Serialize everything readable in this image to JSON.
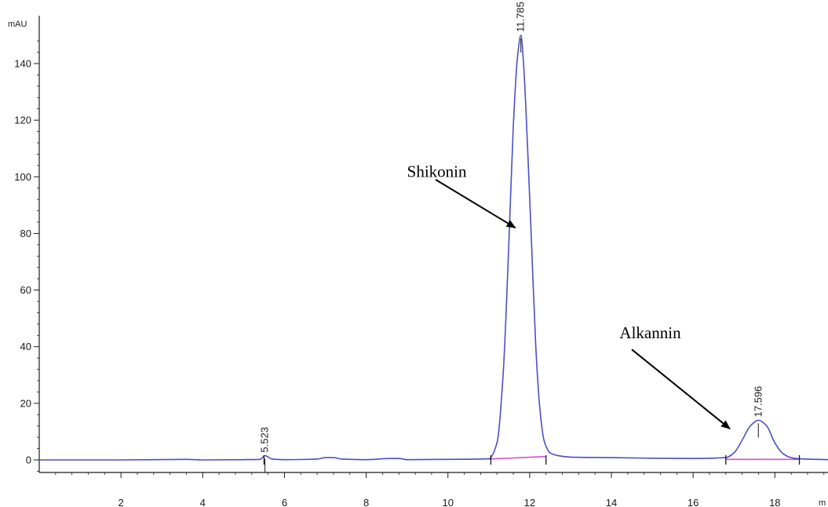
{
  "chart_data": {
    "type": "line",
    "title": "",
    "xlabel": "",
    "ylabel": "",
    "y_unit_label": "mAU",
    "x_unit_label": "m",
    "xlim": [
      0,
      19.3
    ],
    "ylim": [
      -6,
      150
    ],
    "x_ticks": [
      2,
      4,
      6,
      8,
      10,
      12,
      14,
      16,
      18
    ],
    "y_ticks": [
      0,
      20,
      40,
      60,
      80,
      100,
      120,
      140
    ],
    "grid": false,
    "legend": "none",
    "colors": {
      "signal": "#4a4fc8",
      "baseline": "#d24fc8",
      "axis": "#1a1a1a",
      "peak_marker": "#1a1a1a"
    },
    "series": [
      {
        "x": [
          0.0,
          2.0,
          3.6,
          4.0,
          5.0,
          5.4,
          5.523,
          5.7,
          6.0,
          6.8,
          7.0,
          7.2,
          7.4,
          8.0,
          8.6,
          8.8,
          9.0,
          10.0,
          11.0,
          11.2,
          11.35,
          11.5,
          11.6,
          11.7,
          11.785,
          11.85,
          11.95,
          12.05,
          12.15,
          12.25,
          12.35,
          12.5,
          12.7,
          13.0,
          14.0,
          15.0,
          16.0,
          16.8,
          17.0,
          17.2,
          17.4,
          17.596,
          17.8,
          18.0,
          18.2,
          18.4,
          18.6,
          19.0,
          19.3
        ],
        "y": [
          0.0,
          0.0,
          0.2,
          0.0,
          0.1,
          0.2,
          1.5,
          0.3,
          0.1,
          0.3,
          0.8,
          0.8,
          0.3,
          0.1,
          0.5,
          0.5,
          0.1,
          0.2,
          0.4,
          6,
          30,
          80,
          118,
          142,
          150,
          140,
          110,
          75,
          40,
          18,
          7,
          2.5,
          1.5,
          1.0,
          0.8,
          0.6,
          0.5,
          0.8,
          2.5,
          7,
          12,
          14,
          12,
          6,
          2.2,
          0.8,
          0.4,
          0.2,
          0.1
        ]
      }
    ],
    "baseline_segments": [
      [
        [
          11.0,
          0.3
        ],
        [
          12.4,
          1.2
        ]
      ],
      [
        [
          16.8,
          0.2
        ],
        [
          18.6,
          0.2
        ]
      ]
    ],
    "integration_markers": [
      5.5,
      11.05,
      12.4,
      16.8,
      18.6
    ],
    "peaks": [
      {
        "x": 5.523,
        "y": 1.5,
        "label": "5.523"
      },
      {
        "x": 11.785,
        "y": 150,
        "label": "11.785"
      },
      {
        "x": 17.596,
        "y": 14,
        "label": "17.596"
      }
    ],
    "annotations": [
      {
        "text": "Shikonin",
        "text_x": 9.0,
        "text_y": 100,
        "arrow_from": [
          9.7,
          99
        ],
        "arrow_to": [
          11.65,
          82
        ]
      },
      {
        "text": "Alkannin",
        "text_x": 14.2,
        "text_y": 43,
        "arrow_from": [
          14.5,
          39
        ],
        "arrow_to": [
          16.9,
          11
        ]
      }
    ]
  }
}
